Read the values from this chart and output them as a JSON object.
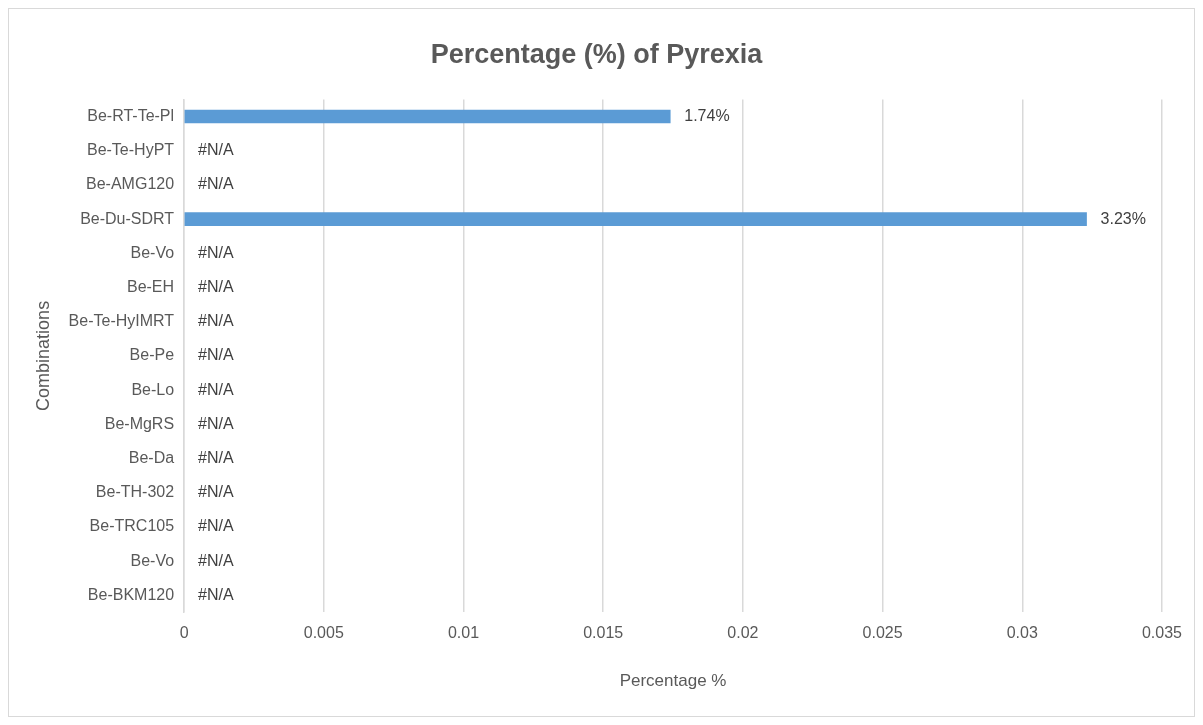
{
  "chart_data": {
    "type": "bar",
    "orientation": "horizontal",
    "title": "Percentage (%) of Pyrexia",
    "xlabel": "Percentage %",
    "ylabel": "Combinations",
    "categories": [
      "Be-RT-Te-Pl",
      "Be-Te-HyPT",
      "Be-AMG120",
      "Be-Du-SDRT",
      "Be-Vo",
      "Be-EH",
      "Be-Te-HyIMRT",
      "Be-Pe",
      "Be-Lo",
      "Be-MgRS",
      "Be-Da",
      "Be-TH-302",
      "Be-TRC105",
      "Be-Vo",
      "Be-BKM120"
    ],
    "values": [
      0.0174,
      null,
      null,
      0.0323,
      null,
      null,
      null,
      null,
      null,
      null,
      null,
      null,
      null,
      null,
      null
    ],
    "value_labels": [
      "1.74%",
      "#N/A",
      "#N/A",
      "3.23%",
      "#N/A",
      "#N/A",
      "#N/A",
      "#N/A",
      "#N/A",
      "#N/A",
      "#N/A",
      "#N/A",
      "#N/A",
      "#N/A",
      "#N/A"
    ],
    "color": "#5b9bd5",
    "xlim": [
      0,
      0.035
    ],
    "xticks": [
      0,
      0.005,
      0.01,
      0.015,
      0.02,
      0.025,
      0.03,
      0.035
    ],
    "grid": "x",
    "legend": false
  }
}
